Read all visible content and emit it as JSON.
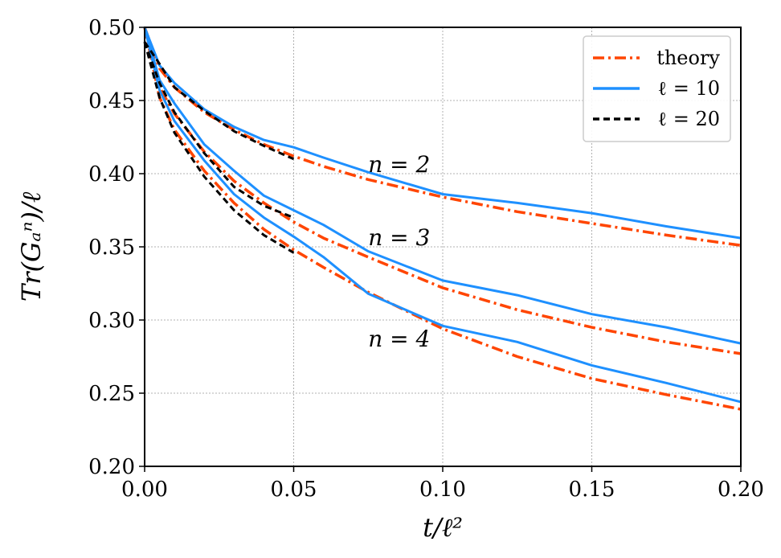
{
  "chart_data": {
    "type": "line",
    "title": "",
    "xlabel": "t/ℓ²",
    "ylabel": "Tr(Gₐⁿ)/ℓ",
    "xlim": [
      0.0,
      0.2
    ],
    "ylim": [
      0.2,
      0.5
    ],
    "xticks": [
      "0.00",
      "0.05",
      "0.10",
      "0.15",
      "0.20"
    ],
    "yticks": [
      "0.20",
      "0.25",
      "0.30",
      "0.35",
      "0.40",
      "0.45",
      "0.50"
    ],
    "grid": true,
    "legend_position": "top-right",
    "legend": [
      {
        "label": "theory",
        "color": "#ff4500",
        "style": "dashdot"
      },
      {
        "label": "ℓ = 10",
        "color": "#1e90ff",
        "style": "solid"
      },
      {
        "label": "ℓ = 20",
        "color": "#000000",
        "style": "dashed"
      }
    ],
    "annotations": [
      {
        "text": "n = 2",
        "x": 0.075,
        "y": 0.401
      },
      {
        "text": "n = 3",
        "x": 0.075,
        "y": 0.351
      },
      {
        "text": "n = 4",
        "x": 0.075,
        "y": 0.282
      }
    ],
    "series": [
      {
        "name": "theory n=2",
        "group": "theory",
        "x": [
          0.0,
          0.005,
          0.01,
          0.02,
          0.03,
          0.04,
          0.05,
          0.06,
          0.075,
          0.1,
          0.125,
          0.15,
          0.175,
          0.2
        ],
        "y": [
          0.5,
          0.472,
          0.459,
          0.442,
          0.43,
          0.42,
          0.412,
          0.405,
          0.396,
          0.384,
          0.374,
          0.366,
          0.358,
          0.351
        ]
      },
      {
        "name": "theory n=3",
        "group": "theory",
        "x": [
          0.0,
          0.005,
          0.01,
          0.02,
          0.03,
          0.04,
          0.05,
          0.06,
          0.075,
          0.1,
          0.125,
          0.15,
          0.175,
          0.2
        ],
        "y": [
          0.5,
          0.459,
          0.441,
          0.415,
          0.395,
          0.38,
          0.367,
          0.356,
          0.343,
          0.322,
          0.307,
          0.295,
          0.285,
          0.277
        ]
      },
      {
        "name": "theory n=4",
        "group": "theory",
        "x": [
          0.0,
          0.005,
          0.01,
          0.02,
          0.03,
          0.04,
          0.05,
          0.06,
          0.075,
          0.1,
          0.125,
          0.15,
          0.175,
          0.2
        ],
        "y": [
          0.5,
          0.452,
          0.43,
          0.402,
          0.38,
          0.362,
          0.348,
          0.336,
          0.319,
          0.294,
          0.275,
          0.26,
          0.249,
          0.239
        ]
      },
      {
        "name": "ℓ=10 n=2",
        "group": "l10",
        "x": [
          0.0,
          0.005,
          0.01,
          0.02,
          0.03,
          0.04,
          0.05,
          0.06,
          0.075,
          0.1,
          0.125,
          0.15,
          0.175,
          0.2
        ],
        "y": [
          0.5,
          0.474,
          0.462,
          0.444,
          0.432,
          0.423,
          0.418,
          0.411,
          0.401,
          0.386,
          0.38,
          0.373,
          0.364,
          0.356
        ]
      },
      {
        "name": "ℓ=10 n=3",
        "group": "l10",
        "x": [
          0.0,
          0.005,
          0.01,
          0.02,
          0.03,
          0.04,
          0.05,
          0.06,
          0.075,
          0.1,
          0.125,
          0.15,
          0.175,
          0.2
        ],
        "y": [
          0.5,
          0.464,
          0.448,
          0.42,
          0.402,
          0.385,
          0.375,
          0.365,
          0.347,
          0.327,
          0.317,
          0.304,
          0.295,
          0.284
        ]
      },
      {
        "name": "ℓ=10 n=4",
        "group": "l10",
        "x": [
          0.0,
          0.005,
          0.01,
          0.02,
          0.03,
          0.04,
          0.05,
          0.06,
          0.075,
          0.1,
          0.125,
          0.15,
          0.175,
          0.2
        ],
        "y": [
          0.5,
          0.457,
          0.436,
          0.409,
          0.386,
          0.37,
          0.357,
          0.343,
          0.318,
          0.296,
          0.285,
          0.269,
          0.257,
          0.244
        ]
      },
      {
        "name": "ℓ=20 n=2",
        "group": "l20",
        "x": [
          0.0,
          0.005,
          0.01,
          0.02,
          0.03,
          0.04,
          0.05
        ],
        "y": [
          0.49,
          0.475,
          0.459,
          0.443,
          0.429,
          0.419,
          0.41
        ]
      },
      {
        "name": "ℓ=20 n=3",
        "group": "l20",
        "x": [
          0.0,
          0.005,
          0.01,
          0.02,
          0.03,
          0.04,
          0.05
        ],
        "y": [
          0.49,
          0.462,
          0.442,
          0.414,
          0.391,
          0.378,
          0.37
        ]
      },
      {
        "name": "ℓ=20 n=4",
        "group": "l20",
        "x": [
          0.0,
          0.005,
          0.01,
          0.02,
          0.03,
          0.04,
          0.05
        ],
        "y": [
          0.49,
          0.452,
          0.428,
          0.398,
          0.375,
          0.358,
          0.346
        ]
      }
    ]
  }
}
